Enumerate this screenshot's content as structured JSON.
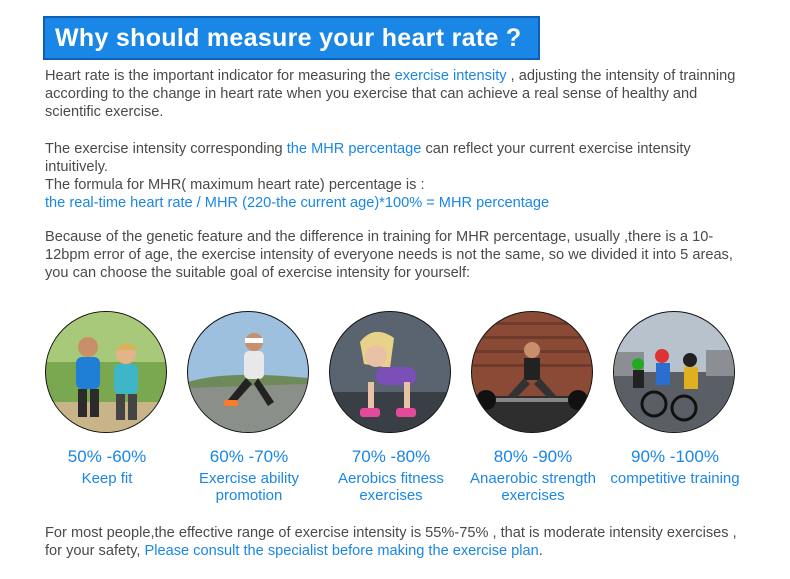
{
  "header": {
    "title": "Why should measure your heart rate ?"
  },
  "intro": {
    "pre": "Heart rate is the important indicator for measuring the ",
    "highlight": "exercise intensity",
    "post": " , adjusting the intensity of trainning according to the change in heart rate when you exercise that can achieve a real sense of healthy and scientific exercise."
  },
  "mhr": {
    "pre": "The exercise intensity corresponding ",
    "highlight": "the MHR percentage",
    "post": " can reflect your current exercise intensity intuitively.",
    "formula_label": "The formula for MHR( maximum heart rate) percentage is :",
    "formula": "the real-time heart rate / MHR (220-the current age)*100% = MHR percentage"
  },
  "genetic": {
    "text": "Because of the genetic feature and the difference in training for MHR percentage, usually ,there is a 10-12bpm error of age,  the exercise intensity of everyone needs is not the same, so we divided it into 5 areas, you can choose the suitable goal of exercise intensity for yourself:"
  },
  "zones": [
    {
      "range": "50% -60%",
      "name": "Keep fit",
      "photo": "jogging-couple"
    },
    {
      "range": "60% -70%",
      "name": "Exercise ability promotion",
      "photo": "runner"
    },
    {
      "range": "70% -80%",
      "name": "Aerobics fitness exercises",
      "photo": "dumbbell-workout"
    },
    {
      "range": "80% -90%",
      "name": "Anaerobic strength exercises",
      "photo": "barbell-squat"
    },
    {
      "range": "90% -100%",
      "name": "competitive training",
      "photo": "cycling-race"
    }
  ],
  "footer": {
    "pre": "For most people,the effective range of exercise intensity is 55%-75% , that is moderate intensity exercises , for your safety, ",
    "highlight": "Please consult the specialist before making the exercise plan",
    "post": "."
  }
}
